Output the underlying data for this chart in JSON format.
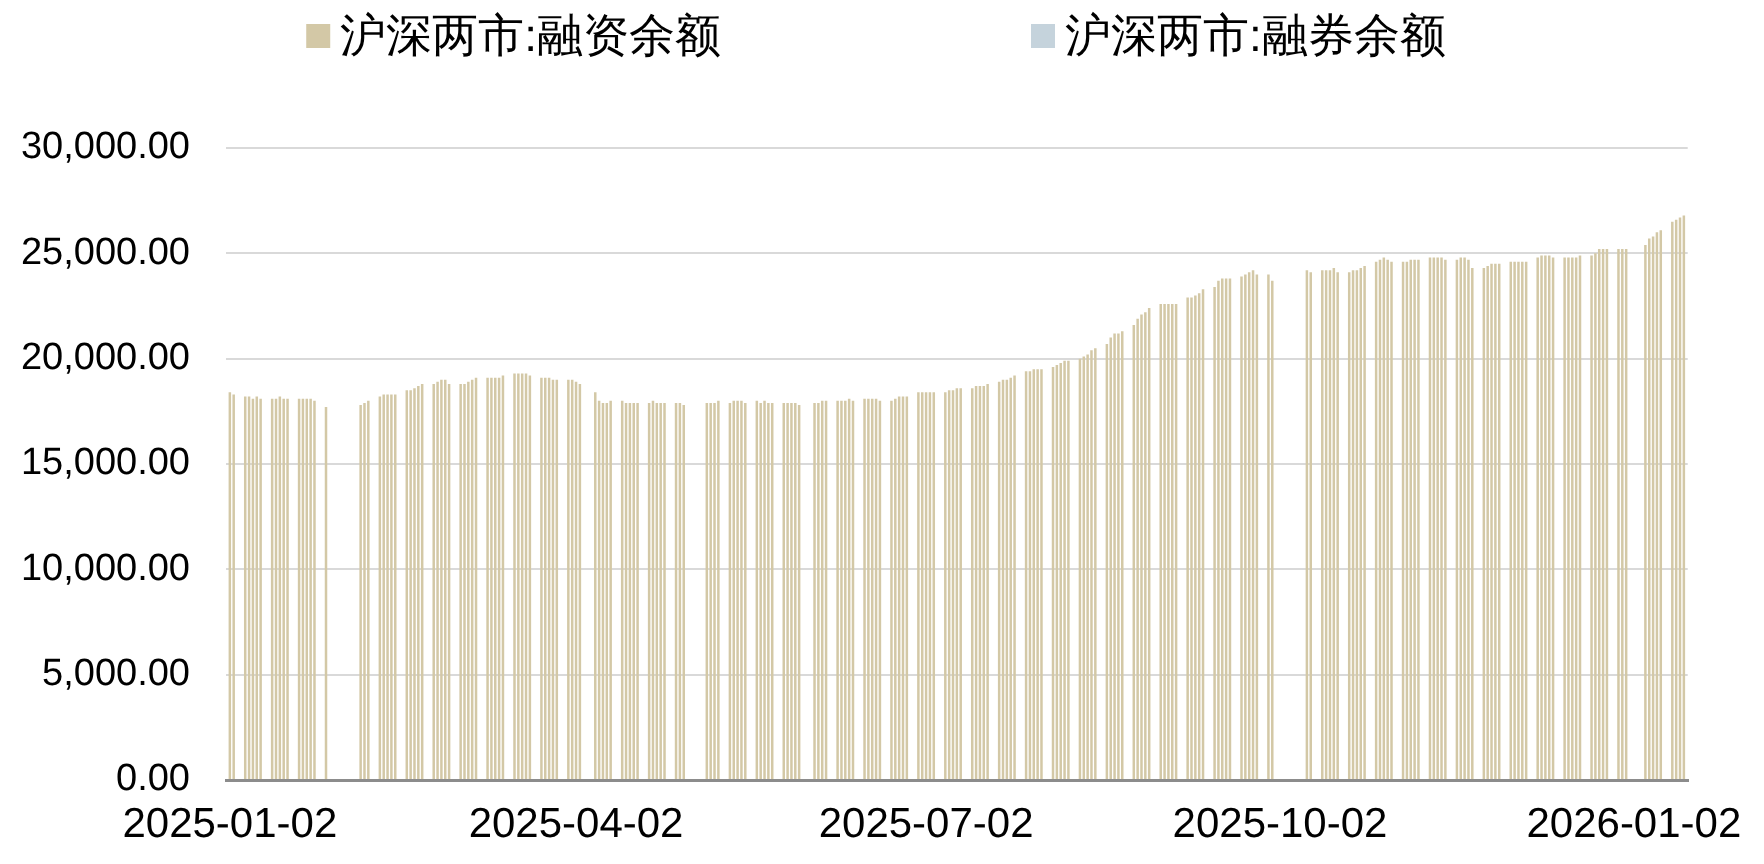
{
  "chart_data": {
    "type": "bar",
    "x": [
      "2025-01-02",
      "2025-01-03",
      "2025-01-06",
      "2025-01-07",
      "2025-01-08",
      "2025-01-09",
      "2025-01-10",
      "2025-01-13",
      "2025-01-14",
      "2025-01-15",
      "2025-01-16",
      "2025-01-17",
      "2025-01-20",
      "2025-01-21",
      "2025-01-22",
      "2025-01-23",
      "2025-01-24",
      "2025-01-27",
      "2025-02-05",
      "2025-02-06",
      "2025-02-07",
      "2025-02-10",
      "2025-02-11",
      "2025-02-12",
      "2025-02-13",
      "2025-02-14",
      "2025-02-17",
      "2025-02-18",
      "2025-02-19",
      "2025-02-20",
      "2025-02-21",
      "2025-02-24",
      "2025-02-25",
      "2025-02-26",
      "2025-02-27",
      "2025-02-28",
      "2025-03-03",
      "2025-03-04",
      "2025-03-05",
      "2025-03-06",
      "2025-03-07",
      "2025-03-10",
      "2025-03-11",
      "2025-03-12",
      "2025-03-13",
      "2025-03-14",
      "2025-03-17",
      "2025-03-18",
      "2025-03-19",
      "2025-03-20",
      "2025-03-21",
      "2025-03-24",
      "2025-03-25",
      "2025-03-26",
      "2025-03-27",
      "2025-03-28",
      "2025-03-31",
      "2025-04-01",
      "2025-04-02",
      "2025-04-03",
      "2025-04-07",
      "2025-04-08",
      "2025-04-09",
      "2025-04-10",
      "2025-04-11",
      "2025-04-14",
      "2025-04-15",
      "2025-04-16",
      "2025-04-17",
      "2025-04-18",
      "2025-04-21",
      "2025-04-22",
      "2025-04-23",
      "2025-04-24",
      "2025-04-25",
      "2025-04-28",
      "2025-04-29",
      "2025-04-30",
      "2025-05-06",
      "2025-05-07",
      "2025-05-08",
      "2025-05-09",
      "2025-05-12",
      "2025-05-13",
      "2025-05-14",
      "2025-05-15",
      "2025-05-16",
      "2025-05-19",
      "2025-05-20",
      "2025-05-21",
      "2025-05-22",
      "2025-05-23",
      "2025-05-26",
      "2025-05-27",
      "2025-05-28",
      "2025-05-29",
      "2025-05-30",
      "2025-06-03",
      "2025-06-04",
      "2025-06-05",
      "2025-06-06",
      "2025-06-09",
      "2025-06-10",
      "2025-06-11",
      "2025-06-12",
      "2025-06-13",
      "2025-06-16",
      "2025-06-17",
      "2025-06-18",
      "2025-06-19",
      "2025-06-20",
      "2025-06-23",
      "2025-06-24",
      "2025-06-25",
      "2025-06-26",
      "2025-06-27",
      "2025-06-30",
      "2025-07-01",
      "2025-07-02",
      "2025-07-03",
      "2025-07-04",
      "2025-07-07",
      "2025-07-08",
      "2025-07-09",
      "2025-07-10",
      "2025-07-11",
      "2025-07-14",
      "2025-07-15",
      "2025-07-16",
      "2025-07-17",
      "2025-07-18",
      "2025-07-21",
      "2025-07-22",
      "2025-07-23",
      "2025-07-24",
      "2025-07-25",
      "2025-07-28",
      "2025-07-29",
      "2025-07-30",
      "2025-07-31",
      "2025-08-01",
      "2025-08-04",
      "2025-08-05",
      "2025-08-06",
      "2025-08-07",
      "2025-08-08",
      "2025-08-11",
      "2025-08-12",
      "2025-08-13",
      "2025-08-14",
      "2025-08-15",
      "2025-08-18",
      "2025-08-19",
      "2025-08-20",
      "2025-08-21",
      "2025-08-22",
      "2025-08-25",
      "2025-08-26",
      "2025-08-27",
      "2025-08-28",
      "2025-08-29",
      "2025-09-01",
      "2025-09-02",
      "2025-09-03",
      "2025-09-04",
      "2025-09-05",
      "2025-09-08",
      "2025-09-09",
      "2025-09-10",
      "2025-09-11",
      "2025-09-12",
      "2025-09-15",
      "2025-09-16",
      "2025-09-17",
      "2025-09-18",
      "2025-09-19",
      "2025-09-22",
      "2025-09-23",
      "2025-09-24",
      "2025-09-25",
      "2025-09-26",
      "2025-09-29",
      "2025-09-30",
      "2025-10-09",
      "2025-10-10",
      "2025-10-13",
      "2025-10-14",
      "2025-10-15",
      "2025-10-16",
      "2025-10-17",
      "2025-10-20",
      "2025-10-21",
      "2025-10-22",
      "2025-10-23",
      "2025-10-24",
      "2025-10-27",
      "2025-10-28",
      "2025-10-29",
      "2025-10-30",
      "2025-10-31",
      "2025-11-03",
      "2025-11-04",
      "2025-11-05",
      "2025-11-06",
      "2025-11-07",
      "2025-11-10",
      "2025-11-11",
      "2025-11-12",
      "2025-11-13",
      "2025-11-14",
      "2025-11-17",
      "2025-11-18",
      "2025-11-19",
      "2025-11-20",
      "2025-11-21",
      "2025-11-24",
      "2025-11-25",
      "2025-11-26",
      "2025-11-27",
      "2025-11-28",
      "2025-12-01",
      "2025-12-02",
      "2025-12-03",
      "2025-12-04",
      "2025-12-05",
      "2025-12-08",
      "2025-12-09",
      "2025-12-10",
      "2025-12-11",
      "2025-12-12",
      "2025-12-15",
      "2025-12-16",
      "2025-12-17",
      "2025-12-18",
      "2025-12-19",
      "2025-12-22",
      "2025-12-23",
      "2025-12-24",
      "2025-12-25",
      "2025-12-26",
      "2025-12-29",
      "2025-12-30",
      "2025-12-31",
      "2026-01-05",
      "2026-01-06",
      "2026-01-07",
      "2026-01-08",
      "2026-01-09",
      "2026-01-12",
      "2026-01-13",
      "2026-01-14",
      "2026-01-15"
    ],
    "series": [
      {
        "name": "沪深两市:融资余额",
        "color": "#d3c8a6",
        "values": [
          18400,
          18300,
          18200,
          18200,
          18100,
          18200,
          18100,
          18100,
          18100,
          18200,
          18100,
          18100,
          18100,
          18100,
          18100,
          18100,
          18000,
          17700,
          17800,
          17900,
          18000,
          18200,
          18300,
          18300,
          18300,
          18300,
          18500,
          18500,
          18600,
          18700,
          18800,
          18800,
          18900,
          19000,
          19000,
          18800,
          18800,
          18800,
          18900,
          19000,
          19100,
          19100,
          19100,
          19100,
          19100,
          19200,
          19300,
          19300,
          19300,
          19300,
          19200,
          19100,
          19100,
          19100,
          19000,
          19000,
          19000,
          19000,
          18900,
          18800,
          18400,
          18000,
          17900,
          17900,
          18000,
          18000,
          17900,
          17900,
          17900,
          17900,
          17900,
          18000,
          17900,
          17900,
          17900,
          17900,
          17900,
          17800,
          17900,
          17900,
          17900,
          18000,
          17900,
          18000,
          18000,
          18000,
          17900,
          18000,
          17900,
          18000,
          17900,
          17900,
          17900,
          17900,
          17900,
          17900,
          17800,
          17900,
          17900,
          18000,
          18000,
          18000,
          18000,
          18000,
          18100,
          18000,
          18100,
          18100,
          18100,
          18100,
          18000,
          18000,
          18100,
          18200,
          18200,
          18200,
          18400,
          18400,
          18400,
          18400,
          18400,
          18400,
          18500,
          18500,
          18600,
          18600,
          18600,
          18700,
          18700,
          18700,
          18800,
          18900,
          19000,
          19000,
          19100,
          19200,
          19400,
          19400,
          19500,
          19500,
          19500,
          19600,
          19700,
          19800,
          19900,
          19900,
          20000,
          20100,
          20200,
          20400,
          20500,
          20700,
          21000,
          21200,
          21200,
          21300,
          21600,
          21900,
          22100,
          22200,
          22400,
          22600,
          22600,
          22600,
          22600,
          22600,
          22900,
          22900,
          23000,
          23100,
          23300,
          23400,
          23700,
          23800,
          23800,
          23800,
          23900,
          24000,
          24100,
          24200,
          24000,
          24000,
          23700,
          24200,
          24100,
          24200,
          24200,
          24200,
          24300,
          24100,
          24100,
          24200,
          24200,
          24300,
          24400,
          24600,
          24700,
          24800,
          24700,
          24600,
          24600,
          24600,
          24700,
          24700,
          24700,
          24800,
          24800,
          24800,
          24800,
          24700,
          24700,
          24800,
          24800,
          24700,
          24300,
          24300,
          24400,
          24500,
          24500,
          24500,
          24600,
          24600,
          24600,
          24600,
          24600,
          24800,
          24900,
          24900,
          24900,
          24800,
          24800,
          24800,
          24800,
          24800,
          24900,
          24900,
          25000,
          25200,
          25200,
          25200,
          25200,
          25200,
          25200,
          25400,
          25700,
          25800,
          26000,
          26100,
          26500,
          26600,
          26700,
          26800
        ]
      },
      {
        "name": "沪深两市:融券余额",
        "color": "#c5d3dc",
        "values": [
          null,
          null,
          null,
          null,
          null,
          null,
          null,
          null,
          null,
          null,
          null,
          null,
          null,
          null,
          null,
          null,
          null,
          null,
          null,
          null,
          null,
          null,
          null,
          null,
          null,
          null,
          null,
          null,
          null,
          null,
          null,
          null,
          null,
          null,
          null,
          null,
          null,
          null,
          null,
          null,
          null,
          null,
          null,
          null,
          null,
          null,
          null,
          null,
          null,
          null,
          null,
          null,
          null,
          null,
          null,
          null,
          null,
          null,
          null,
          null,
          null,
          null,
          null,
          null,
          null,
          null,
          null,
          null,
          null,
          null,
          null,
          null,
          null,
          null,
          null,
          null,
          null,
          null,
          null,
          null,
          null,
          null,
          null,
          null,
          null,
          null,
          null,
          null,
          null,
          null,
          null,
          null,
          null,
          null,
          null,
          null,
          null,
          null,
          null,
          null,
          null,
          null,
          null,
          null,
          null,
          null,
          null,
          null,
          null,
          null,
          null,
          null,
          null,
          null,
          null,
          null,
          null,
          null,
          null,
          null,
          null,
          null,
          null,
          null,
          null,
          null,
          null,
          null,
          null,
          null,
          null,
          null,
          null,
          null,
          null,
          null,
          null,
          null,
          null,
          null,
          null,
          null,
          null,
          null,
          null,
          null,
          null,
          null,
          null,
          null,
          null,
          null,
          null,
          null,
          null,
          null,
          null,
          null,
          null,
          null,
          null,
          null,
          null,
          null,
          null,
          null,
          null,
          null,
          null,
          null,
          null,
          null,
          null,
          null,
          null,
          null,
          null,
          null,
          null,
          null,
          null,
          null,
          null,
          null,
          null,
          null,
          null,
          null,
          null,
          null,
          null,
          null,
          null,
          null,
          null,
          null,
          null,
          null,
          null,
          null,
          null,
          null,
          null,
          null,
          null,
          null,
          null,
          null,
          null,
          null,
          null,
          null,
          null,
          null,
          null,
          null,
          null,
          null,
          null,
          null,
          null,
          null,
          null,
          null,
          null,
          null,
          null,
          null,
          null,
          null,
          null,
          null,
          null,
          null,
          null,
          null,
          null,
          null,
          null,
          null,
          null,
          null,
          null,
          null,
          null,
          null,
          null,
          null,
          null,
          null,
          null,
          null
        ]
      }
    ],
    "xlim": [
      "2025-01-01",
      "2026-01-16"
    ],
    "xticks": [
      "2025-01-02",
      "2025-04-02",
      "2025-07-02",
      "2025-10-02",
      "2026-01-02"
    ],
    "ylim": [
      0,
      30000
    ],
    "yticks": [
      {
        "value": 0,
        "label": "0.00"
      },
      {
        "value": 5000,
        "label": "5,000.00"
      },
      {
        "value": 10000,
        "label": "10,000.00"
      },
      {
        "value": 15000,
        "label": "15,000.00"
      },
      {
        "value": 20000,
        "label": "20,000.00"
      },
      {
        "value": 25000,
        "label": "25,000.00"
      },
      {
        "value": 30000,
        "label": "30,000.00"
      }
    ],
    "grid": "y",
    "legend": "top"
  }
}
